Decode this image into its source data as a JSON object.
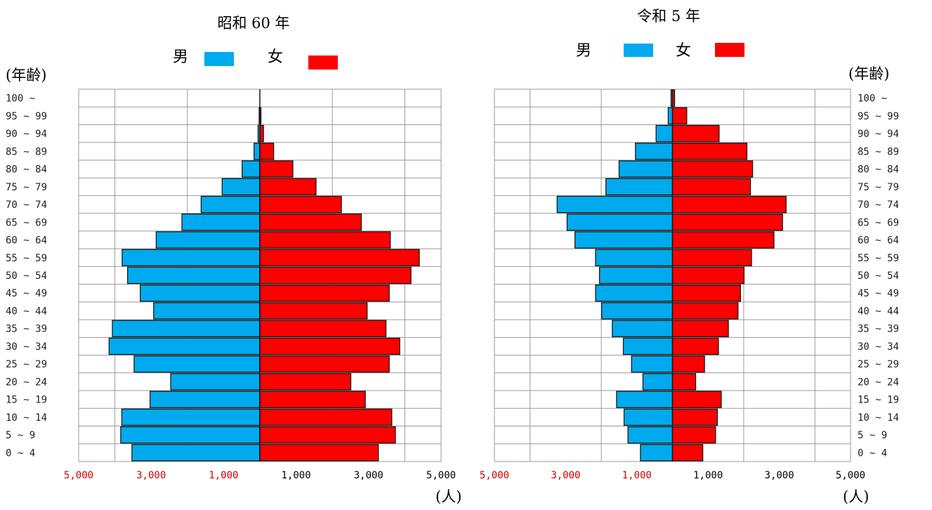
{
  "colors": {
    "male": "#00aaee",
    "female": "#ff0000",
    "left_ticks": "#d00000",
    "right_ticks": "#000000",
    "grid": "#9a9a9a"
  },
  "legend": {
    "male": "男",
    "female": "女"
  },
  "y_axis_label": "(年齢)",
  "x_unit_label": "(人)",
  "chart_data": [
    {
      "type": "bar",
      "orientation": "horizontal",
      "subtype": "population-pyramid",
      "title": "昭和 60 年",
      "age_groups": [
        "100 ~",
        "95 ~ 99",
        "90 ~ 94",
        "85 ~ 89",
        "80 ~ 84",
        "75 ~ 79",
        "70 ~ 74",
        "65 ~ 69",
        "60 ~ 64",
        "55 ~ 59",
        "50 ~ 54",
        "45 ~ 49",
        "40 ~ 44",
        "35 ~ 39",
        "30 ~ 34",
        "25 ~ 29",
        "20 ~ 24",
        "15 ~ 19",
        "10 ~ 14",
        "5 ~ 9",
        "0 ~ 4"
      ],
      "xticks": [
        "5,000",
        "3,000",
        "1,000",
        "1,000",
        "3,000",
        "5,000"
      ],
      "xlim": [
        -5000,
        5000
      ],
      "series": [
        {
          "name": "男",
          "values": [
            0,
            20,
            50,
            160,
            490,
            1040,
            1620,
            2150,
            2860,
            3800,
            3650,
            3300,
            2930,
            4070,
            4160,
            3470,
            2460,
            3030,
            3810,
            3840,
            3530
          ]
        },
        {
          "name": "女",
          "values": [
            0,
            30,
            100,
            380,
            910,
            1550,
            2250,
            2800,
            3600,
            4400,
            4170,
            3570,
            2960,
            3480,
            3860,
            3570,
            2510,
            2910,
            3640,
            3740,
            3270
          ]
        }
      ]
    },
    {
      "type": "bar",
      "orientation": "horizontal",
      "subtype": "population-pyramid",
      "title": "令和 5 年",
      "age_groups": [
        "100 ~",
        "95 ~ 99",
        "90 ~ 94",
        "85 ~ 89",
        "80 ~ 84",
        "75 ~ 79",
        "70 ~ 74",
        "65 ~ 69",
        "60 ~ 64",
        "55 ~ 59",
        "50 ~ 54",
        "45 ~ 49",
        "40 ~ 44",
        "35 ~ 39",
        "30 ~ 34",
        "25 ~ 29",
        "20 ~ 24",
        "15 ~ 19",
        "10 ~ 14",
        "5 ~ 9",
        "0 ~ 4"
      ],
      "xticks": [
        "5,000",
        "3,000",
        "1,000",
        "1,000",
        "3,000",
        "5,000"
      ],
      "xlim": [
        -5000,
        5000
      ],
      "series": [
        {
          "name": "男",
          "values": [
            40,
            120,
            460,
            1040,
            1500,
            1870,
            3240,
            2960,
            2740,
            2160,
            2050,
            2160,
            1990,
            1690,
            1380,
            1150,
            830,
            1570,
            1360,
            1250,
            900
          ]
        },
        {
          "name": "女",
          "values": [
            60,
            400,
            1310,
            2090,
            2250,
            2190,
            3190,
            3090,
            2850,
            2220,
            2010,
            1910,
            1840,
            1570,
            1290,
            900,
            650,
            1370,
            1260,
            1210,
            850
          ]
        }
      ]
    }
  ]
}
